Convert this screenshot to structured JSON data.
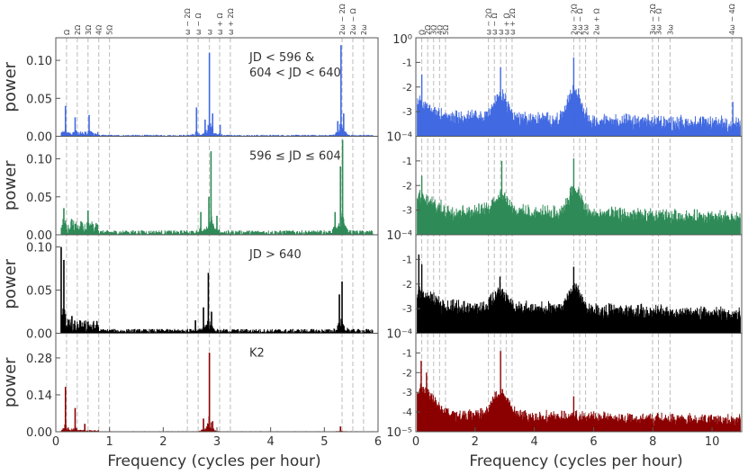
{
  "chart_data": [
    {
      "type": "line",
      "title": "",
      "xlabel": "Frequency (cycles per hour)",
      "xlim": [
        0,
        6
      ],
      "x_ticks": [
        "0",
        "1",
        "2",
        "3",
        "4",
        "5",
        "6"
      ],
      "panels": [
        {
          "ylabel": "power",
          "label": [
            "JD < 596 &",
            "604 < JD < 640"
          ],
          "ylim": [
            0,
            0.125
          ],
          "y_ticks": [
            "0.00",
            "0.05",
            "0.10"
          ],
          "y_tick_values": [
            0,
            0.05,
            0.1
          ],
          "color": "#4169e1",
          "noise": 0.002,
          "peaks": [
            {
              "x": 0.18,
              "y": 0.04
            },
            {
              "x": 0.36,
              "y": 0.025
            },
            {
              "x": 0.62,
              "y": 0.028
            },
            {
              "x": 2.62,
              "y": 0.038
            },
            {
              "x": 2.78,
              "y": 0.022
            },
            {
              "x": 2.86,
              "y": 0.11
            },
            {
              "x": 2.92,
              "y": 0.03
            },
            {
              "x": 3.06,
              "y": 0.015
            },
            {
              "x": 5.25,
              "y": 0.02
            },
            {
              "x": 5.31,
              "y": 0.12
            },
            {
              "x": 5.36,
              "y": 0.03
            }
          ]
        },
        {
          "ylabel": "power",
          "label": [
            "596 ≤ JD ≤ 604"
          ],
          "ylim": [
            0,
            0.125
          ],
          "y_ticks": [
            "0.00",
            "0.05",
            "0.10"
          ],
          "y_tick_values": [
            0,
            0.05,
            0.1
          ],
          "color": "#2e8b57",
          "noise": 0.006,
          "peaks": [
            {
              "x": 0.15,
              "y": 0.035
            },
            {
              "x": 0.3,
              "y": 0.02
            },
            {
              "x": 0.6,
              "y": 0.032
            },
            {
              "x": 2.7,
              "y": 0.03
            },
            {
              "x": 2.85,
              "y": 0.05
            },
            {
              "x": 2.89,
              "y": 0.11
            },
            {
              "x": 3.0,
              "y": 0.025
            },
            {
              "x": 5.2,
              "y": 0.03
            },
            {
              "x": 5.3,
              "y": 0.09
            },
            {
              "x": 5.34,
              "y": 0.125
            }
          ]
        },
        {
          "ylabel": "power",
          "label": [
            "JD > 640"
          ],
          "ylim": [
            0,
            0.11
          ],
          "y_ticks": [
            "0.00",
            "0.05",
            "0.10"
          ],
          "y_tick_values": [
            0,
            0.05,
            0.1
          ],
          "color": "#000000",
          "noise": 0.005,
          "peaks": [
            {
              "x": 0.1,
              "y": 0.1
            },
            {
              "x": 0.15,
              "y": 0.085
            },
            {
              "x": 0.3,
              "y": 0.02
            },
            {
              "x": 0.45,
              "y": 0.015
            },
            {
              "x": 2.6,
              "y": 0.015
            },
            {
              "x": 2.75,
              "y": 0.03
            },
            {
              "x": 2.84,
              "y": 0.07
            },
            {
              "x": 2.9,
              "y": 0.025
            },
            {
              "x": 5.28,
              "y": 0.045
            },
            {
              "x": 5.33,
              "y": 0.06
            }
          ]
        },
        {
          "ylabel": "power",
          "label": [
            "K2"
          ],
          "ylim": [
            0,
            0.36
          ],
          "y_ticks": [
            "0.00",
            "0.14",
            "0.28"
          ],
          "y_tick_values": [
            0,
            0.14,
            0.28
          ],
          "color": "#8b0000",
          "noise": 0.002,
          "peaks": [
            {
              "x": 0.18,
              "y": 0.17
            },
            {
              "x": 0.36,
              "y": 0.09
            },
            {
              "x": 0.54,
              "y": 0.03
            },
            {
              "x": 2.75,
              "y": 0.05
            },
            {
              "x": 2.86,
              "y": 0.3
            },
            {
              "x": 2.92,
              "y": 0.04
            },
            {
              "x": 5.3,
              "y": 0.02
            }
          ]
        }
      ],
      "guide_lines": [
        {
          "x": 0.2,
          "label": "Ω"
        },
        {
          "x": 0.4,
          "label": "2Ω"
        },
        {
          "x": 0.6,
          "label": "3Ω"
        },
        {
          "x": 0.8,
          "label": "4Ω"
        },
        {
          "x": 1.0,
          "label": "5Ω"
        },
        {
          "x": 2.45,
          "label": "ω − 2Ω"
        },
        {
          "x": 2.65,
          "label": "ω − Ω"
        },
        {
          "x": 2.86,
          "label": "ω"
        },
        {
          "x": 3.05,
          "label": "ω + Ω"
        },
        {
          "x": 3.25,
          "label": "ω + 2Ω"
        },
        {
          "x": 5.33,
          "label": "2ω − 2Ω"
        },
        {
          "x": 5.53,
          "label": "2ω − Ω"
        },
        {
          "x": 5.73,
          "label": "2ω"
        }
      ]
    },
    {
      "type": "line",
      "title": "",
      "xlabel": "Frequency (cycles per hour)",
      "xlim": [
        0,
        11
      ],
      "x_ticks": [
        "0",
        "2",
        "4",
        "6",
        "8",
        "10"
      ],
      "yscale": "log",
      "panels": [
        {
          "ylim_exp": [
            -4,
            0
          ],
          "top_label": "10⁰",
          "bottom_label": "10⁻⁴",
          "y_ticks": [
            "-1",
            "-2",
            "-3"
          ],
          "y_tick_values": [
            -1,
            -2,
            -3
          ],
          "color": "#4169e1",
          "baseline": -3.4,
          "bumps": [
            {
              "x": 2.86,
              "h": 0.9,
              "w": 0.35
            },
            {
              "x": 5.35,
              "h": 1.2,
              "w": 0.3
            }
          ],
          "spikes": [
            {
              "x": 0.2,
              "y": -1.5
            },
            {
              "x": 2.86,
              "y": -1.2
            },
            {
              "x": 5.33,
              "y": -0.8
            },
            {
              "x": 10.7,
              "y": -2.6
            }
          ]
        },
        {
          "ylim_exp": [
            -4,
            0
          ],
          "top_label": "",
          "bottom_label": "10⁻⁴",
          "y_ticks": [
            "-1",
            "-2",
            "-3"
          ],
          "y_tick_values": [
            -1,
            -2,
            -3
          ],
          "color": "#2e8b57",
          "baseline": -3.2,
          "bumps": [
            {
              "x": 2.86,
              "h": 0.7,
              "w": 0.35
            },
            {
              "x": 5.35,
              "h": 1.0,
              "w": 0.3
            }
          ],
          "spikes": [
            {
              "x": 0.2,
              "y": -1.6
            },
            {
              "x": 2.9,
              "y": -1.0
            },
            {
              "x": 5.33,
              "y": -0.9
            }
          ]
        },
        {
          "ylim_exp": [
            -4,
            0
          ],
          "top_label": "",
          "bottom_label": "10⁻⁴",
          "y_ticks": [
            "-1",
            "-2",
            "-3"
          ],
          "y_tick_values": [
            -1,
            -2,
            -3
          ],
          "color": "#000000",
          "baseline": -3.1,
          "bumps": [
            {
              "x": 2.86,
              "h": 0.6,
              "w": 0.35
            },
            {
              "x": 5.35,
              "h": 0.9,
              "w": 0.3
            }
          ],
          "spikes": [
            {
              "x": 0.1,
              "y": -0.8
            },
            {
              "x": 0.2,
              "y": -1.2
            },
            {
              "x": 2.84,
              "y": -1.7
            },
            {
              "x": 5.33,
              "y": -1.3
            }
          ]
        },
        {
          "ylim_exp": [
            -5,
            0
          ],
          "top_label": "",
          "bottom_label": "10⁻⁵",
          "y_ticks": [
            "-1",
            "-2",
            "-3",
            "-4"
          ],
          "y_tick_values": [
            -1,
            -2,
            -3,
            -4
          ],
          "color": "#8b0000",
          "baseline": -4.3,
          "bumps": [
            {
              "x": 2.86,
              "h": 1.2,
              "w": 0.35
            },
            {
              "x": 0.3,
              "h": 0.8,
              "w": 0.5
            }
          ],
          "spikes": [
            {
              "x": 0.18,
              "y": -1.4
            },
            {
              "x": 0.36,
              "y": -2.0
            },
            {
              "x": 2.86,
              "y": -0.9
            },
            {
              "x": 5.33,
              "y": -3.2
            }
          ]
        }
      ],
      "guide_lines": [
        {
          "x": 0.2,
          "label": "Ω"
        },
        {
          "x": 0.4,
          "label": "2Ω"
        },
        {
          "x": 0.6,
          "label": "3Ω"
        },
        {
          "x": 0.8,
          "label": "4Ω"
        },
        {
          "x": 1.0,
          "label": "5Ω"
        },
        {
          "x": 2.45,
          "label": "ω − 2Ω"
        },
        {
          "x": 2.65,
          "label": "ω − Ω"
        },
        {
          "x": 2.86,
          "label": "ω"
        },
        {
          "x": 3.05,
          "label": "ω + Ω"
        },
        {
          "x": 3.25,
          "label": "ω + 2Ω"
        },
        {
          "x": 5.33,
          "label": "2ω − 2Ω"
        },
        {
          "x": 5.53,
          "label": "2ω − Ω"
        },
        {
          "x": 5.73,
          "label": "2ω"
        },
        {
          "x": 6.1,
          "label": "2ω + Ω"
        },
        {
          "x": 7.99,
          "label": "3ω − 2Ω"
        },
        {
          "x": 8.19,
          "label": "3ω − Ω"
        },
        {
          "x": 8.58,
          "label": "3ω"
        },
        {
          "x": 10.67,
          "label": "4ω − 4Ω"
        }
      ]
    }
  ]
}
